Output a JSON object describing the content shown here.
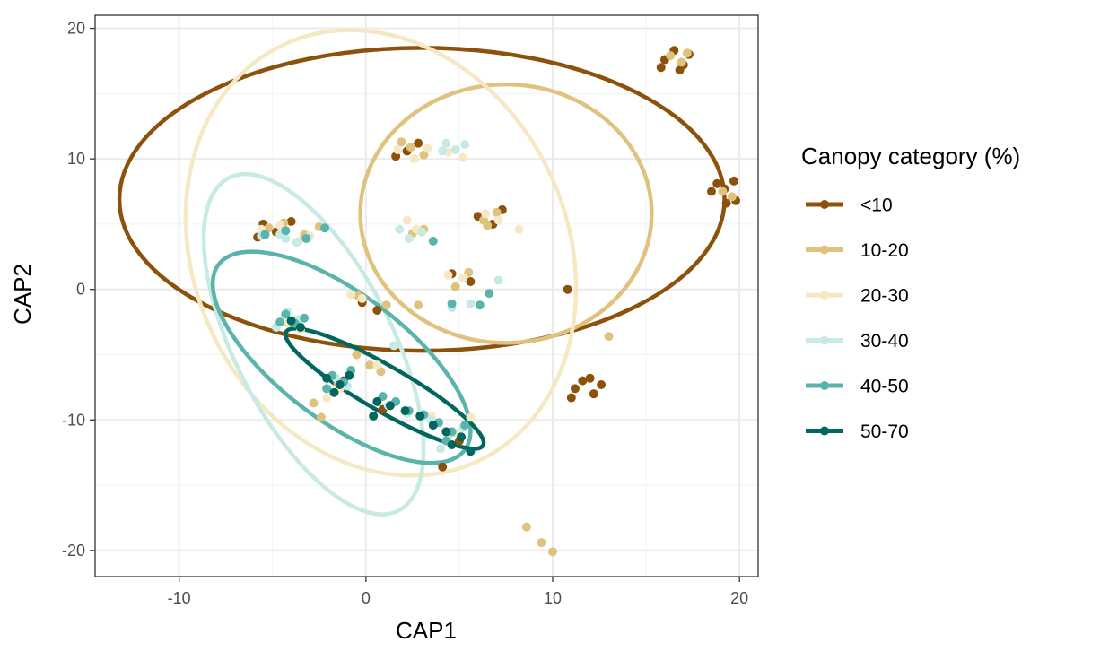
{
  "chart_data": {
    "type": "scatter",
    "xlabel": "CAP1",
    "ylabel": "CAP2",
    "xlim": [
      -14.5,
      21
    ],
    "ylim": [
      -22,
      21
    ],
    "x_ticks": [
      -10,
      0,
      10,
      20
    ],
    "y_ticks": [
      -20,
      -10,
      0,
      10,
      20
    ],
    "x_tick_labels": [
      "-10",
      "0",
      "10",
      "20"
    ],
    "y_tick_labels": [
      "-20",
      "-10",
      "0",
      "10",
      "20"
    ],
    "grid": true,
    "legend": {
      "title": "Canopy category (%)",
      "position": "right"
    },
    "series": [
      {
        "name": "<10",
        "color": "#8c510a",
        "ellipse": {
          "cx": 3.0,
          "cy": 6.9,
          "rx": 16.2,
          "ry": 11.6,
          "angle": 0
        },
        "points": [
          [
            16.0,
            17.6
          ],
          [
            16.5,
            18.3
          ],
          [
            17.0,
            17.2
          ],
          [
            17.3,
            18.0
          ],
          [
            15.8,
            17.0
          ],
          [
            16.8,
            16.8
          ],
          [
            18.8,
            8.1
          ],
          [
            19.2,
            7.7
          ],
          [
            19.7,
            8.3
          ],
          [
            19.3,
            6.6
          ],
          [
            19.8,
            6.8
          ],
          [
            18.5,
            7.5
          ],
          [
            11.2,
            -7.6
          ],
          [
            11.6,
            -7.0
          ],
          [
            12.2,
            -8.0
          ],
          [
            12.6,
            -7.3
          ],
          [
            11.0,
            -8.3
          ],
          [
            12.0,
            -6.8
          ],
          [
            -5.5,
            5.0
          ],
          [
            -4.8,
            4.4
          ],
          [
            -4.0,
            5.2
          ],
          [
            -5.8,
            4.0
          ],
          [
            2.2,
            10.6
          ],
          [
            2.8,
            11.2
          ],
          [
            1.6,
            10.2
          ],
          [
            6.0,
            5.6
          ],
          [
            6.8,
            5.0
          ],
          [
            7.3,
            6.1
          ],
          [
            -0.2,
            -1.0
          ],
          [
            0.6,
            -1.6
          ],
          [
            4.6,
            1.2
          ],
          [
            5.6,
            0.6
          ],
          [
            4.1,
            -13.6
          ],
          [
            5.0,
            -11.6
          ],
          [
            10.8,
            0.0
          ],
          [
            -1.2,
            -7.0
          ],
          [
            0.9,
            -9.2
          ]
        ]
      },
      {
        "name": "10-20",
        "color": "#dfc27d",
        "ellipse": {
          "cx": 7.5,
          "cy": 5.8,
          "rx": 7.8,
          "ry": 9.9,
          "angle": 0
        },
        "points": [
          [
            16.3,
            17.9
          ],
          [
            16.9,
            17.4
          ],
          [
            17.2,
            18.1
          ],
          [
            19.1,
            7.5
          ],
          [
            19.6,
            7.1
          ],
          [
            2.4,
            10.9
          ],
          [
            3.1,
            10.3
          ],
          [
            1.9,
            11.3
          ],
          [
            6.3,
            5.3
          ],
          [
            7.0,
            5.9
          ],
          [
            6.5,
            4.9
          ],
          [
            -5.2,
            4.7
          ],
          [
            -4.4,
            5.1
          ],
          [
            2.5,
            4.3
          ],
          [
            3.1,
            4.6
          ],
          [
            -0.4,
            -0.5
          ],
          [
            1.1,
            -1.2
          ],
          [
            2.8,
            -1.2
          ],
          [
            4.8,
            0.2
          ],
          [
            5.5,
            1.3
          ],
          [
            13.0,
            -3.6
          ],
          [
            8.6,
            -18.2
          ],
          [
            9.4,
            -19.4
          ],
          [
            10.0,
            -20.1
          ],
          [
            -2.8,
            -8.7
          ],
          [
            -2.4,
            -9.8
          ],
          [
            -0.5,
            -5.0
          ],
          [
            0.2,
            -5.8
          ],
          [
            0.8,
            -6.3
          ],
          [
            -1.5,
            -7.2
          ],
          [
            -3.3,
            4.2
          ],
          [
            -2.5,
            4.8
          ]
        ]
      },
      {
        "name": "20-30",
        "color": "#f6e8c3",
        "ellipse": {
          "cx": 0.8,
          "cy": 2.8,
          "rx": 10.0,
          "ry": 17.6,
          "angle": -25
        },
        "points": [
          [
            1.7,
            10.7
          ],
          [
            2.6,
            10.0
          ],
          [
            3.3,
            10.8
          ],
          [
            4.4,
            10.5
          ],
          [
            5.2,
            10.1
          ],
          [
            6.4,
            5.8
          ],
          [
            7.1,
            5.3
          ],
          [
            8.2,
            4.6
          ],
          [
            2.2,
            5.3
          ],
          [
            2.7,
            4.6
          ],
          [
            -0.8,
            -0.4
          ],
          [
            -0.2,
            -0.7
          ],
          [
            4.4,
            1.1
          ],
          [
            5.2,
            0.9
          ],
          [
            -2.1,
            -8.3
          ],
          [
            -1.4,
            -7.6
          ],
          [
            0.6,
            -5.8
          ],
          [
            -5.6,
            4.6
          ],
          [
            -4.6,
            4.9
          ],
          [
            -3.6,
            3.7
          ],
          [
            -3.0,
            4.1
          ],
          [
            4.8,
            -11.0
          ],
          [
            5.6,
            -9.8
          ],
          [
            3.5,
            -9.7
          ],
          [
            -4.2,
            -2.6
          ],
          [
            -3.5,
            -3.1
          ]
        ]
      },
      {
        "name": "30-40",
        "color": "#c7eae5",
        "ellipse": {
          "cx": -2.8,
          "cy": -4.2,
          "rx": 4.2,
          "ry": 14.3,
          "angle": -27
        },
        "points": [
          [
            4.3,
            11.2
          ],
          [
            4.8,
            10.7
          ],
          [
            5.3,
            11.1
          ],
          [
            4.1,
            10.6
          ],
          [
            1.8,
            4.6
          ],
          [
            2.3,
            3.9
          ],
          [
            3.0,
            4.4
          ],
          [
            -3.7,
            3.6
          ],
          [
            -4.3,
            3.9
          ],
          [
            -3.1,
            4.0
          ],
          [
            -5.6,
            4.1
          ],
          [
            -4.6,
            4.2
          ],
          [
            7.1,
            0.7
          ],
          [
            4.6,
            -1.4
          ],
          [
            5.6,
            -1.1
          ],
          [
            -4.2,
            -1.7
          ],
          [
            -3.6,
            -2.3
          ],
          [
            -4.8,
            -2.9
          ],
          [
            1.5,
            -4.3
          ],
          [
            -1.6,
            -6.8
          ],
          [
            -1.0,
            -7.4
          ],
          [
            1.2,
            -8.9
          ],
          [
            2.2,
            -9.5
          ],
          [
            3.5,
            -10.0
          ],
          [
            4.4,
            -11.3
          ],
          [
            5.2,
            -10.6
          ],
          [
            4.0,
            -12.2
          ]
        ]
      },
      {
        "name": "40-50",
        "color": "#5ab4ac",
        "ellipse": {
          "cx": -1.3,
          "cy": -5.2,
          "rx": 3.4,
          "ry": 11.8,
          "angle": -53
        },
        "points": [
          [
            -5.4,
            4.2
          ],
          [
            -4.3,
            4.5
          ],
          [
            -3.2,
            3.9
          ],
          [
            -2.2,
            4.7
          ],
          [
            3.6,
            3.7
          ],
          [
            6.6,
            -0.3
          ],
          [
            6.1,
            -1.2
          ],
          [
            4.6,
            -1.1
          ],
          [
            -4.3,
            -1.9
          ],
          [
            -3.8,
            -2.6
          ],
          [
            -4.6,
            -2.5
          ],
          [
            -3.3,
            -2.2
          ],
          [
            -1.8,
            -6.6
          ],
          [
            -1.2,
            -7.1
          ],
          [
            -0.8,
            -6.2
          ],
          [
            -2.1,
            -7.6
          ],
          [
            0.9,
            -8.2
          ],
          [
            1.6,
            -8.6
          ],
          [
            2.3,
            -9.3
          ],
          [
            3.1,
            -9.6
          ],
          [
            3.9,
            -10.2
          ],
          [
            4.6,
            -10.9
          ],
          [
            5.3,
            -10.4
          ],
          [
            4.3,
            -11.6
          ]
        ]
      },
      {
        "name": "50-70",
        "color": "#01665e",
        "ellipse": {
          "cx": 1.0,
          "cy": -7.6,
          "rx": 1.2,
          "ry": 8.7,
          "angle": -60
        },
        "points": [
          [
            -2.1,
            -6.8
          ],
          [
            -1.4,
            -7.3
          ],
          [
            -0.9,
            -6.6
          ],
          [
            -1.7,
            -7.9
          ],
          [
            0.6,
            -8.6
          ],
          [
            1.3,
            -8.9
          ],
          [
            2.1,
            -9.3
          ],
          [
            2.9,
            -9.7
          ],
          [
            3.6,
            -10.4
          ],
          [
            4.3,
            -10.9
          ],
          [
            5.1,
            -11.3
          ],
          [
            5.6,
            -12.4
          ],
          [
            4.6,
            -11.9
          ],
          [
            -4.0,
            -2.4
          ],
          [
            -3.5,
            -2.9
          ],
          [
            0.4,
            -9.7
          ]
        ]
      }
    ]
  }
}
